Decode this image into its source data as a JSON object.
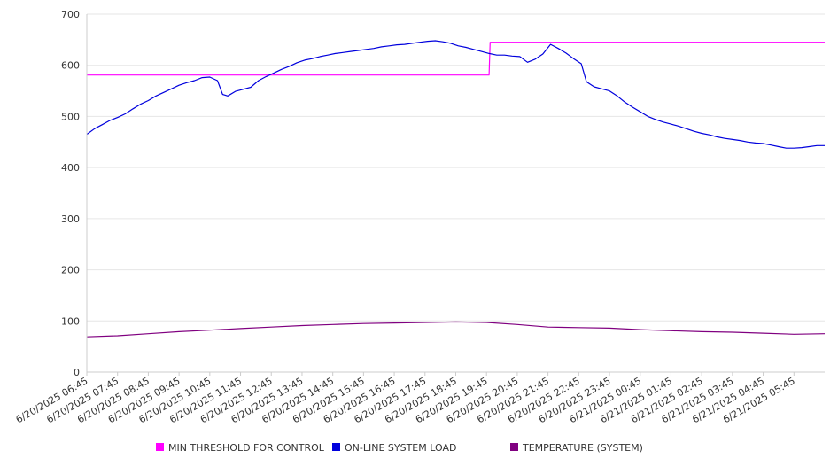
{
  "chart_data": {
    "type": "line",
    "title": "",
    "xlabel": "",
    "ylabel": "",
    "ylim": [
      0,
      700
    ],
    "yticks": [
      0,
      100,
      200,
      300,
      400,
      500,
      600,
      700
    ],
    "grid": true,
    "legend_position": "bottom",
    "xticks": [
      "6/20/2025 06:45",
      "6/20/2025 07:45",
      "6/20/2025 08:45",
      "6/20/2025 09:45",
      "6/20/2025 10:45",
      "6/20/2025 11:45",
      "6/20/2025 12:45",
      "6/20/2025 13:45",
      "6/20/2025 14:45",
      "6/20/2025 15:45",
      "6/20/2025 16:45",
      "6/20/2025 17:45",
      "6/20/2025 18:45",
      "6/20/2025 19:45",
      "6/20/2025 20:45",
      "6/20/2025 21:45",
      "6/20/2025 22:45",
      "6/20/2025 23:45",
      "6/21/2025 00:45",
      "6/21/2025 01:45",
      "6/21/2025 02:45",
      "6/21/2025 03:45",
      "6/21/2025 04:45",
      "6/21/2025 05:45"
    ],
    "x_range": [
      "6/20/2025 06:45",
      "6/21/2025 06:45"
    ],
    "series": [
      {
        "name": "MIN THRESHOLD FOR CONTROL",
        "color": "#ff00ff",
        "points": [
          [
            "6/20/2025 06:45",
            581
          ],
          [
            "6/20/2025 19:50",
            581
          ],
          [
            "6/20/2025 19:52",
            645
          ],
          [
            "6/21/2025 06:45",
            645
          ]
        ]
      },
      {
        "name": "ON-LINE SYSTEM LOAD",
        "color": "#0000dd",
        "points": [
          [
            "6/20/2025 06:45",
            465
          ],
          [
            "6/20/2025 07:00",
            476
          ],
          [
            "6/20/2025 07:15",
            484
          ],
          [
            "6/20/2025 07:30",
            492
          ],
          [
            "6/20/2025 07:45",
            498
          ],
          [
            "6/20/2025 08:00",
            505
          ],
          [
            "6/20/2025 08:15",
            515
          ],
          [
            "6/20/2025 08:30",
            524
          ],
          [
            "6/20/2025 08:45",
            531
          ],
          [
            "6/20/2025 09:00",
            540
          ],
          [
            "6/20/2025 09:15",
            547
          ],
          [
            "6/20/2025 09:30",
            554
          ],
          [
            "6/20/2025 09:45",
            561
          ],
          [
            "6/20/2025 10:00",
            566
          ],
          [
            "6/20/2025 10:15",
            570
          ],
          [
            "6/20/2025 10:30",
            576
          ],
          [
            "6/20/2025 10:45",
            577
          ],
          [
            "6/20/2025 11:00",
            570
          ],
          [
            "6/20/2025 11:10",
            543
          ],
          [
            "6/20/2025 11:20",
            540
          ],
          [
            "6/20/2025 11:35",
            549
          ],
          [
            "6/20/2025 11:50",
            553
          ],
          [
            "6/20/2025 12:05",
            557
          ],
          [
            "6/20/2025 12:20",
            570
          ],
          [
            "6/20/2025 12:35",
            578
          ],
          [
            "6/20/2025 12:50",
            585
          ],
          [
            "6/20/2025 13:05",
            592
          ],
          [
            "6/20/2025 13:20",
            598
          ],
          [
            "6/20/2025 13:35",
            605
          ],
          [
            "6/20/2025 13:50",
            610
          ],
          [
            "6/20/2025 14:05",
            613
          ],
          [
            "6/20/2025 14:20",
            617
          ],
          [
            "6/20/2025 14:35",
            620
          ],
          [
            "6/20/2025 14:50",
            623
          ],
          [
            "6/20/2025 15:05",
            625
          ],
          [
            "6/20/2025 15:20",
            627
          ],
          [
            "6/20/2025 15:35",
            629
          ],
          [
            "6/20/2025 15:50",
            631
          ],
          [
            "6/20/2025 16:05",
            633
          ],
          [
            "6/20/2025 16:20",
            636
          ],
          [
            "6/20/2025 16:35",
            638
          ],
          [
            "6/20/2025 16:50",
            640
          ],
          [
            "6/20/2025 17:05",
            641
          ],
          [
            "6/20/2025 17:20",
            643
          ],
          [
            "6/20/2025 17:35",
            645
          ],
          [
            "6/20/2025 17:50",
            647
          ],
          [
            "6/20/2025 18:05",
            648
          ],
          [
            "6/20/2025 18:20",
            646
          ],
          [
            "6/20/2025 18:35",
            643
          ],
          [
            "6/20/2025 18:50",
            638
          ],
          [
            "6/20/2025 19:05",
            635
          ],
          [
            "6/20/2025 19:20",
            631
          ],
          [
            "6/20/2025 19:35",
            627
          ],
          [
            "6/20/2025 19:50",
            623
          ],
          [
            "6/20/2025 20:05",
            620
          ],
          [
            "6/20/2025 20:20",
            620
          ],
          [
            "6/20/2025 20:35",
            618
          ],
          [
            "6/20/2025 20:50",
            617
          ],
          [
            "6/20/2025 21:05",
            606
          ],
          [
            "6/20/2025 21:20",
            612
          ],
          [
            "6/20/2025 21:35",
            622
          ],
          [
            "6/20/2025 21:50",
            641
          ],
          [
            "6/20/2025 22:05",
            633
          ],
          [
            "6/20/2025 22:20",
            624
          ],
          [
            "6/20/2025 22:35",
            613
          ],
          [
            "6/20/2025 22:50",
            603
          ],
          [
            "6/20/2025 23:00",
            568
          ],
          [
            "6/20/2025 23:15",
            558
          ],
          [
            "6/20/2025 23:30",
            554
          ],
          [
            "6/20/2025 23:45",
            550
          ],
          [
            "6/21/2025 00:00",
            540
          ],
          [
            "6/21/2025 00:15",
            528
          ],
          [
            "6/21/2025 00:30",
            518
          ],
          [
            "6/21/2025 00:45",
            509
          ],
          [
            "6/21/2025 01:00",
            500
          ],
          [
            "6/21/2025 01:15",
            494
          ],
          [
            "6/21/2025 01:30",
            489
          ],
          [
            "6/21/2025 01:45",
            485
          ],
          [
            "6/21/2025 02:00",
            481
          ],
          [
            "6/21/2025 02:15",
            476
          ],
          [
            "6/21/2025 02:30",
            471
          ],
          [
            "6/21/2025 02:45",
            467
          ],
          [
            "6/21/2025 03:00",
            464
          ],
          [
            "6/21/2025 03:15",
            460
          ],
          [
            "6/21/2025 03:30",
            457
          ],
          [
            "6/21/2025 03:45",
            455
          ],
          [
            "6/21/2025 04:00",
            453
          ],
          [
            "6/21/2025 04:15",
            450
          ],
          [
            "6/21/2025 04:30",
            448
          ],
          [
            "6/21/2025 04:45",
            447
          ],
          [
            "6/21/2025 05:00",
            444
          ],
          [
            "6/21/2025 05:15",
            441
          ],
          [
            "6/21/2025 05:30",
            438
          ],
          [
            "6/21/2025 05:45",
            438
          ],
          [
            "6/21/2025 06:00",
            439
          ],
          [
            "6/21/2025 06:15",
            441
          ],
          [
            "6/21/2025 06:30",
            443
          ],
          [
            "6/21/2025 06:45",
            443
          ]
        ]
      },
      {
        "name": "TEMPERATURE (SYSTEM)",
        "color": "#800080",
        "points": [
          [
            "6/20/2025 06:45",
            69
          ],
          [
            "6/20/2025 07:45",
            71
          ],
          [
            "6/20/2025 08:45",
            75
          ],
          [
            "6/20/2025 09:45",
            79
          ],
          [
            "6/20/2025 10:45",
            82
          ],
          [
            "6/20/2025 11:45",
            85
          ],
          [
            "6/20/2025 12:45",
            88
          ],
          [
            "6/20/2025 13:45",
            91
          ],
          [
            "6/20/2025 14:45",
            93
          ],
          [
            "6/20/2025 15:45",
            95
          ],
          [
            "6/20/2025 16:45",
            96
          ],
          [
            "6/20/2025 17:45",
            97
          ],
          [
            "6/20/2025 18:45",
            98
          ],
          [
            "6/20/2025 19:45",
            97
          ],
          [
            "6/20/2025 20:45",
            93
          ],
          [
            "6/20/2025 21:45",
            88
          ],
          [
            "6/20/2025 22:45",
            87
          ],
          [
            "6/20/2025 23:45",
            86
          ],
          [
            "6/21/2025 00:45",
            83
          ],
          [
            "6/21/2025 01:45",
            81
          ],
          [
            "6/21/2025 02:45",
            79
          ],
          [
            "6/21/2025 03:45",
            78
          ],
          [
            "6/21/2025 04:45",
            76
          ],
          [
            "6/21/2025 05:45",
            74
          ],
          [
            "6/21/2025 06:45",
            75
          ]
        ]
      }
    ]
  }
}
